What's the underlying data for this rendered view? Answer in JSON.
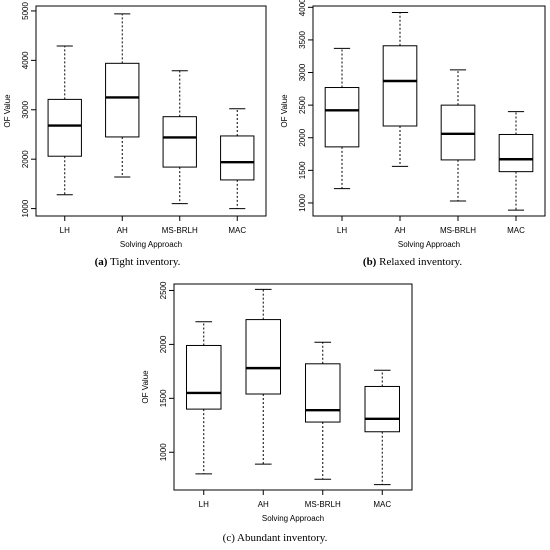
{
  "chart_data": [
    {
      "type": "boxplot",
      "caption_tag": "(a)",
      "caption_text": " Tight inventory.",
      "xlabel": "Solving Approach",
      "ylabel": "OF Value",
      "yticks": [
        1000,
        2000,
        3000,
        4000,
        5000
      ],
      "ylim": [
        850,
        5100
      ],
      "categories": [
        "LH",
        "AH",
        "MS-BRLH",
        "MAC"
      ],
      "boxes": [
        {
          "min": 1280,
          "q1": 2060,
          "median": 2680,
          "q3": 3210,
          "max": 4290
        },
        {
          "min": 1640,
          "q1": 2450,
          "median": 3250,
          "q3": 3940,
          "max": 4940
        },
        {
          "min": 1100,
          "q1": 1840,
          "median": 2440,
          "q3": 2860,
          "max": 3790
        },
        {
          "min": 1000,
          "q1": 1580,
          "median": 1940,
          "q3": 2470,
          "max": 3020
        }
      ]
    },
    {
      "type": "boxplot",
      "caption_tag": "(b)",
      "caption_text": " Relaxed inventory.",
      "xlabel": "Solving Approach",
      "ylabel": "OF Value",
      "yticks": [
        1000,
        1500,
        2000,
        2500,
        3000,
        3500,
        4000
      ],
      "ylim": [
        800,
        4020
      ],
      "categories": [
        "LH",
        "AH",
        "MS-BRLH",
        "MAC"
      ],
      "boxes": [
        {
          "min": 1220,
          "q1": 1860,
          "median": 2420,
          "q3": 2770,
          "max": 3370
        },
        {
          "min": 1560,
          "q1": 2180,
          "median": 2870,
          "q3": 3410,
          "max": 3920
        },
        {
          "min": 1030,
          "q1": 1660,
          "median": 2060,
          "q3": 2500,
          "max": 3040
        },
        {
          "min": 890,
          "q1": 1480,
          "median": 1670,
          "q3": 2050,
          "max": 2400
        }
      ]
    },
    {
      "type": "boxplot",
      "caption_tag": "",
      "caption_text": "(c) Abundant inventory.",
      "xlabel": "Solving Approach",
      "ylabel": "OF Value",
      "yticks": [
        1000,
        1500,
        2000,
        2500
      ],
      "ylim": [
        650,
        2560
      ],
      "categories": [
        "LH",
        "AH",
        "MS-BRLH",
        "MAC"
      ],
      "boxes": [
        {
          "min": 800,
          "q1": 1400,
          "median": 1550,
          "q3": 1990,
          "max": 2210
        },
        {
          "min": 890,
          "q1": 1540,
          "median": 1780,
          "q3": 2230,
          "max": 2510
        },
        {
          "min": 750,
          "q1": 1280,
          "median": 1390,
          "q3": 1820,
          "max": 2020
        },
        {
          "min": 700,
          "q1": 1190,
          "median": 1310,
          "q3": 1610,
          "max": 1760
        }
      ]
    }
  ]
}
